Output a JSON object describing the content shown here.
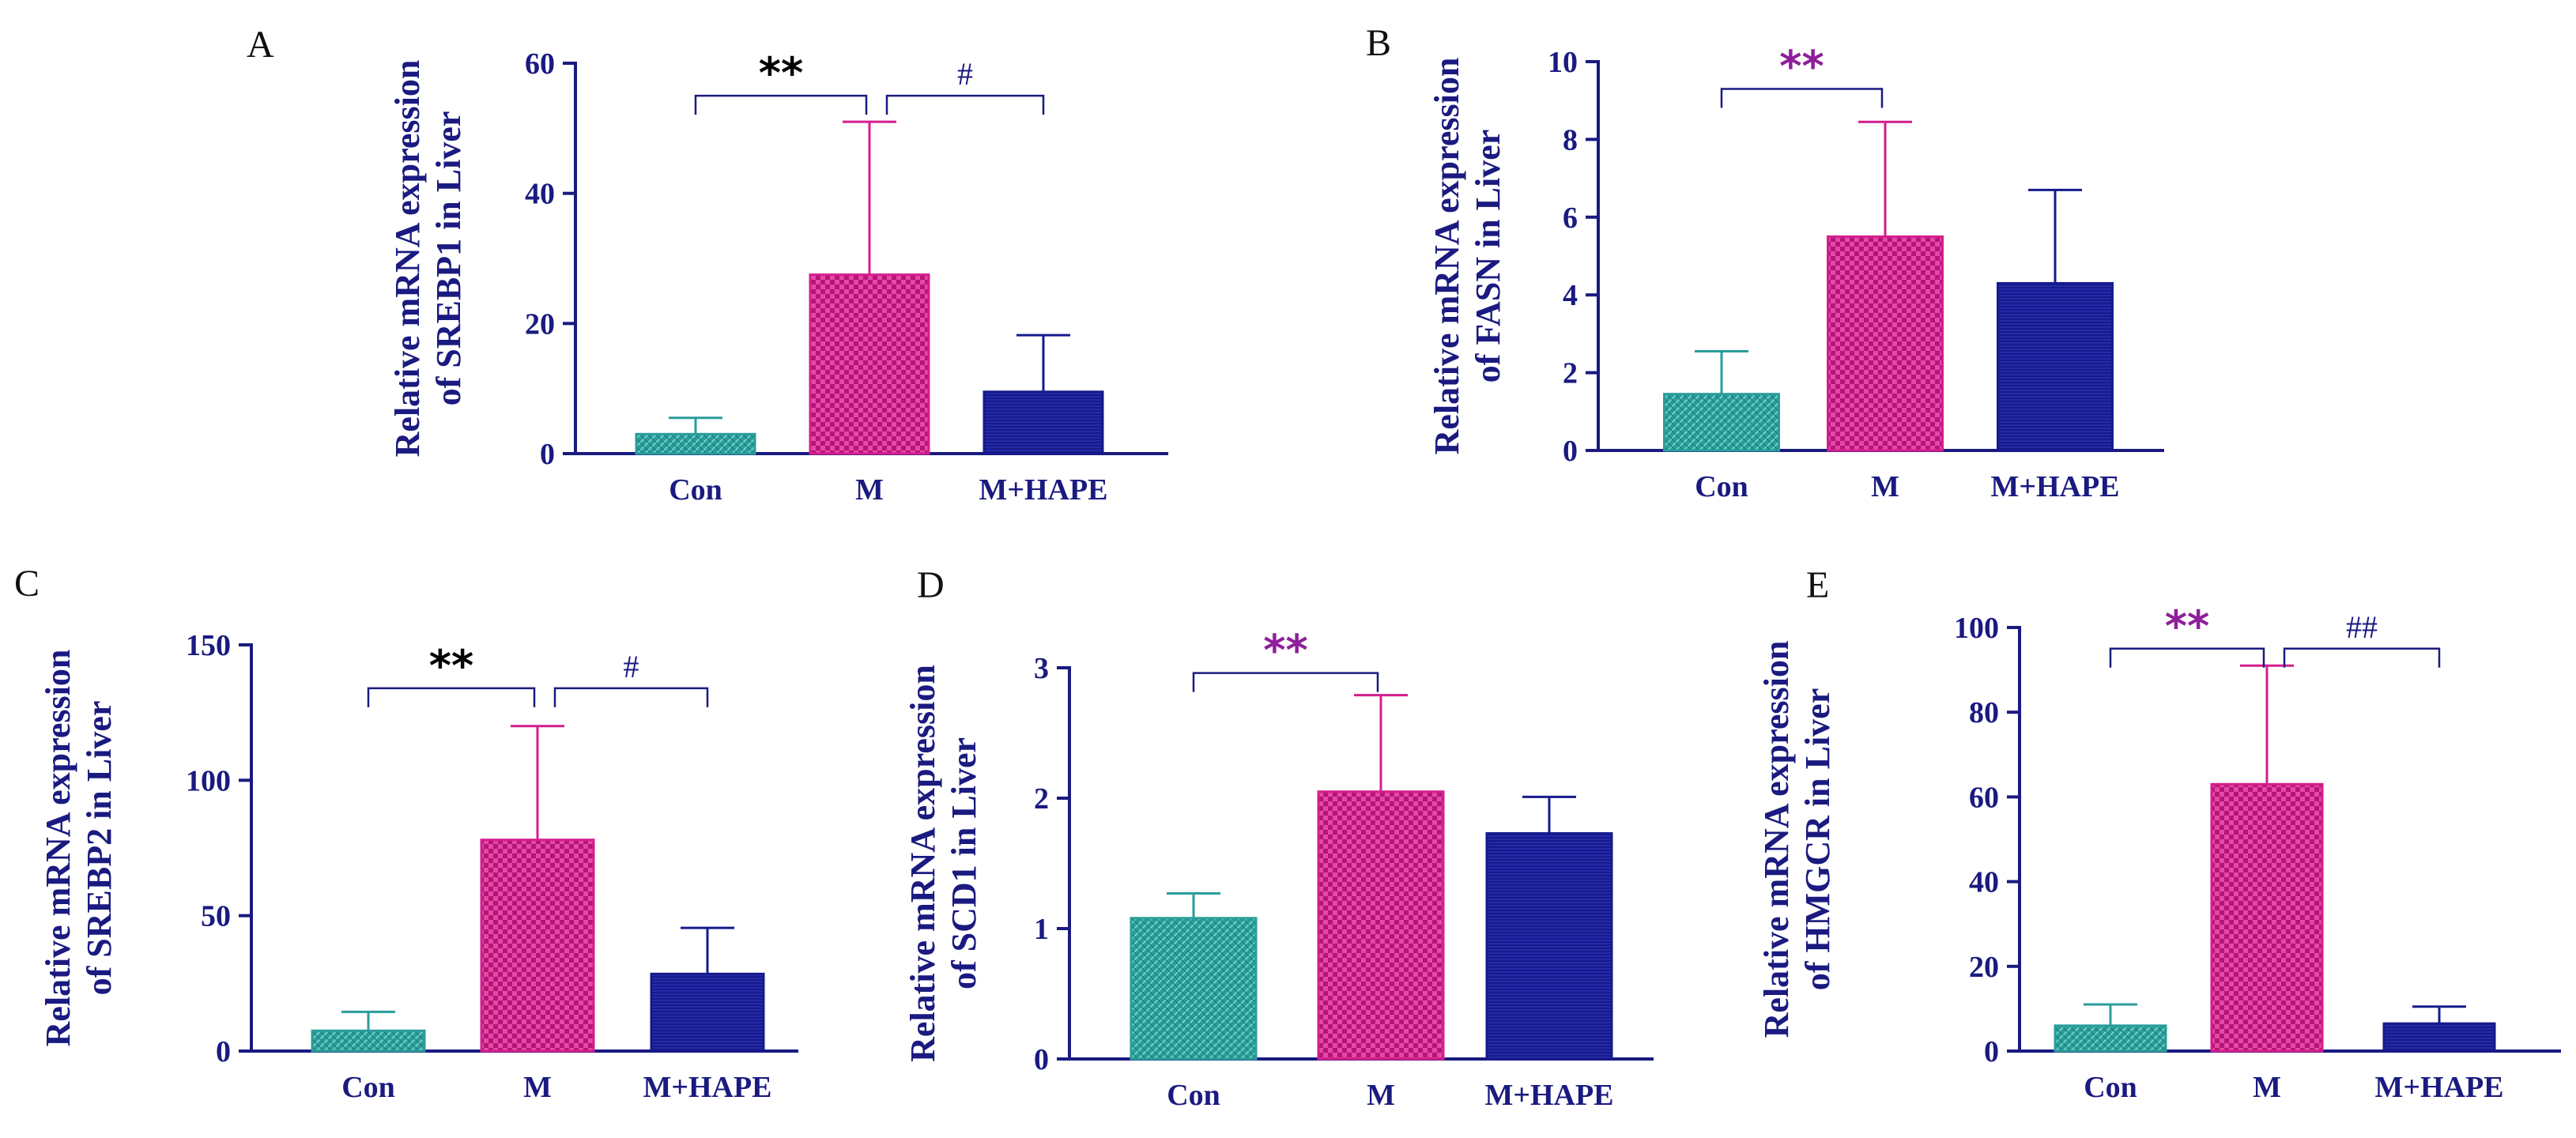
{
  "colors": {
    "axis": "#1a1a80",
    "Con": "#2a9d9a",
    "M": "#d41e8c",
    "M+HAPE": "#161a8c",
    "sig_black": "#000000",
    "sig_purple": "#8e1f9b"
  },
  "chart_data": [
    {
      "panel": "A",
      "type": "bar",
      "categories": [
        "Con",
        "M",
        "M+HAPE"
      ],
      "values": [
        3,
        27.5,
        9.5
      ],
      "errors": [
        2.5,
        23.5,
        8.7
      ],
      "ylabel_line1": "Relative mRNA expression",
      "ylabel_line2": "of SREBP1 in Liver",
      "ylim": [
        0,
        60
      ],
      "yticks": [
        "0",
        "20",
        "40",
        "60"
      ],
      "significance": [
        {
          "from": 0,
          "to": 1,
          "text": "**",
          "color": "black",
          "y": 55
        },
        {
          "from": 1,
          "to": 2,
          "text": "#",
          "color": "axis",
          "y": 55
        }
      ]
    },
    {
      "panel": "B",
      "type": "bar",
      "categories": [
        "Con",
        "M",
        "M+HAPE"
      ],
      "values": [
        1.45,
        5.5,
        4.3
      ],
      "errors": [
        1.1,
        2.95,
        2.4
      ],
      "ylabel_line1": "Relative mRNA expression",
      "ylabel_line2": "of FASN in Liver",
      "ylim": [
        0,
        10
      ],
      "yticks": [
        "0",
        "2",
        "4",
        "6",
        "8",
        "10"
      ],
      "significance": [
        {
          "from": 0,
          "to": 1,
          "text": "**",
          "color": "purple",
          "y": 9.3
        }
      ]
    },
    {
      "panel": "C",
      "type": "bar",
      "categories": [
        "Con",
        "M",
        "M+HAPE"
      ],
      "values": [
        7.5,
        78,
        28.5
      ],
      "errors": [
        7,
        42,
        17
      ],
      "ylabel_line1": "Relative mRNA expression",
      "ylabel_line2": "of SREBP2 in Liver",
      "ylim": [
        0,
        150
      ],
      "yticks": [
        "0",
        "50",
        "100",
        "150"
      ],
      "significance": [
        {
          "from": 0,
          "to": 1,
          "text": "**",
          "color": "black",
          "y": 134
        },
        {
          "from": 1,
          "to": 2,
          "text": "#",
          "color": "axis",
          "y": 134
        }
      ]
    },
    {
      "panel": "D",
      "type": "bar",
      "categories": [
        "Con",
        "M",
        "M+HAPE"
      ],
      "values": [
        1.08,
        2.05,
        1.73
      ],
      "errors": [
        0.19,
        0.74,
        0.28
      ],
      "ylabel_line1": "Relative mRNA expression",
      "ylabel_line2": "of SCD1 in Liver",
      "ylim": [
        0,
        3
      ],
      "yticks": [
        "0",
        "1",
        "2",
        "3"
      ],
      "significance": [
        {
          "from": 0,
          "to": 1,
          "text": "**",
          "color": "purple",
          "y": 2.96
        }
      ]
    },
    {
      "panel": "E",
      "type": "bar",
      "categories": [
        "Con",
        "M",
        "M+HAPE"
      ],
      "values": [
        6,
        63,
        6.5
      ],
      "errors": [
        5,
        28,
        4
      ],
      "ylabel_line1": "Relative mRNA expression",
      "ylabel_line2": "of HMGCR in Liver",
      "ylim": [
        0,
        100
      ],
      "yticks": [
        "0",
        "20",
        "40",
        "60",
        "80",
        "100"
      ],
      "significance": [
        {
          "from": 0,
          "to": 1,
          "text": "**",
          "color": "purple",
          "y": 95
        },
        {
          "from": 1,
          "to": 2,
          "text": "##",
          "color": "axis",
          "y": 95
        }
      ]
    }
  ]
}
